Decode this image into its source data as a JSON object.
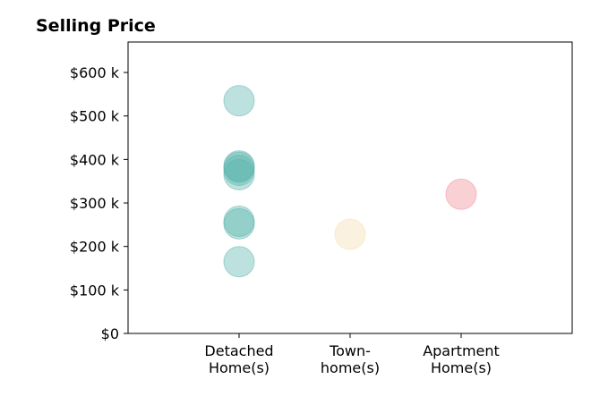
{
  "chart_data": {
    "type": "scatter",
    "title": "Selling Price",
    "xlabel": "",
    "ylabel": "",
    "categories": [
      [
        "Detached",
        "Home(s)"
      ],
      [
        "Town-",
        "home(s)"
      ],
      [
        "Apartment",
        "Home(s)"
      ]
    ],
    "ylim": [
      0,
      670000
    ],
    "yticks": [
      0,
      100000,
      200000,
      300000,
      400000,
      500000,
      600000
    ],
    "ytick_labels": [
      "$0",
      "$100 k",
      "$200 k",
      "$300 k",
      "$400 k",
      "$500 k",
      "$600 k"
    ],
    "grid": false,
    "series": [
      {
        "color": "#5ab4ac",
        "category_index": 0,
        "values": [
          535000,
          382000,
          375000,
          365000,
          385000,
          258000,
          252000,
          165000
        ]
      },
      {
        "color": "#f2dfb0",
        "category_index": 1,
        "values": [
          228000
        ]
      },
      {
        "color": "#f08c97",
        "category_index": 2,
        "values": [
          320000
        ]
      }
    ]
  }
}
